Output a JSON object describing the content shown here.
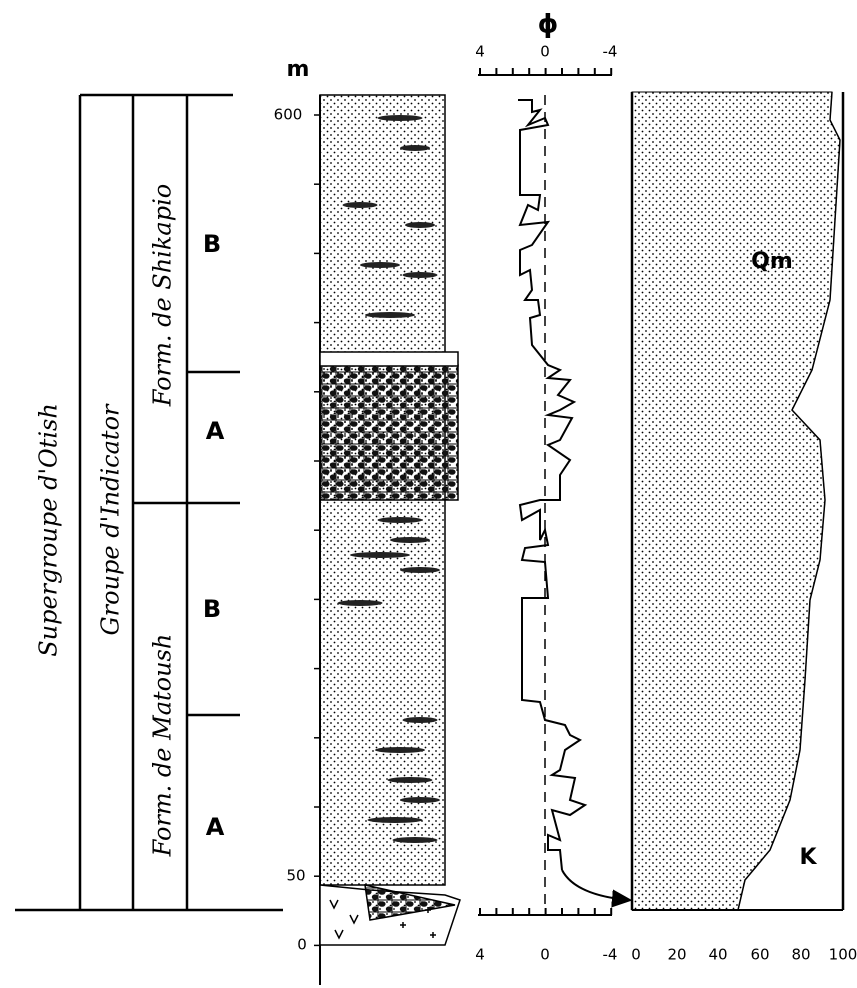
{
  "depth_axis": {
    "unit": "m",
    "labels": [
      "600",
      "50",
      "0"
    ]
  },
  "phi_scale": {
    "symbol": "ϕ",
    "top_labels": [
      "4",
      "0",
      "-4"
    ],
    "bottom_labels": [
      "4",
      "0",
      "-4"
    ]
  },
  "composition_scale": {
    "labels": [
      "0",
      "20",
      "40",
      "60",
      "80",
      "100"
    ]
  },
  "composition_labels": {
    "upper": "Qm",
    "lower": "K"
  },
  "stratigraphy": {
    "supergroup": "Supergroupe d'Otish",
    "group": "Groupe d'Indicator",
    "formations": [
      {
        "name": "Form. de Shikapio",
        "members": [
          "B",
          "A"
        ]
      },
      {
        "name": "Form. de Matoush",
        "members": [
          "B",
          "A"
        ]
      }
    ]
  }
}
